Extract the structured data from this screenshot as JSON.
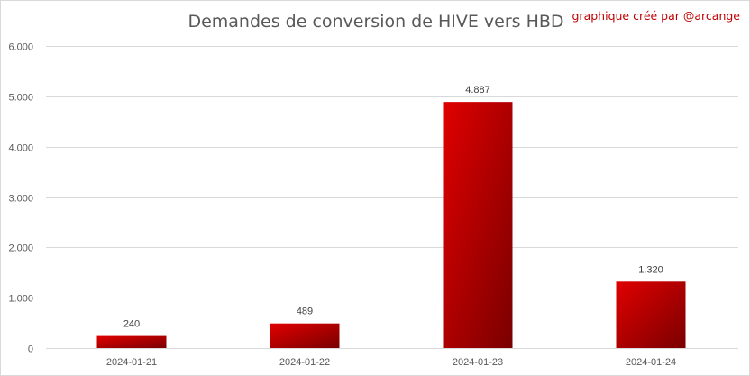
{
  "title": "Demandes de conversion de HIVE vers HBD",
  "credit": "graphique créé par @arcange",
  "colors": {
    "bar_light": "#e00000",
    "bar_dark": "#7a0000",
    "grid": "#d9d9d9",
    "text": "#595959",
    "credit": "#c00000"
  },
  "chart_data": {
    "type": "bar",
    "title": "Demandes de conversion de HIVE vers HBD",
    "xlabel": "",
    "ylabel": "",
    "categories": [
      "2024-01-21",
      "2024-01-22",
      "2024-01-23",
      "2024-01-24"
    ],
    "values": [
      240,
      489,
      4887,
      1320
    ],
    "value_labels": [
      "240",
      "489",
      "4.887",
      "1.320"
    ],
    "ylim": [
      0,
      6000
    ],
    "yticks": [
      0,
      1000,
      2000,
      3000,
      4000,
      5000,
      6000
    ],
    "ytick_labels": [
      "0",
      "1.000",
      "2.000",
      "3.000",
      "4.000",
      "5.000",
      "6.000"
    ],
    "grid": true,
    "legend": "none"
  }
}
